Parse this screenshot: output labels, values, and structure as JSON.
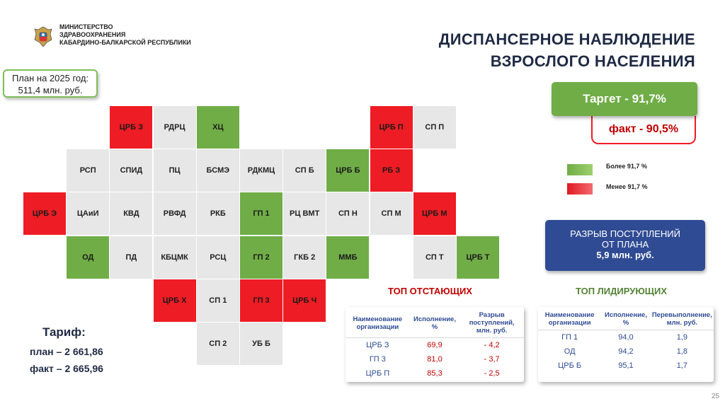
{
  "header": {
    "ministry_lines": [
      "МИНИСТЕРСТВО",
      "ЗДРАВООХРАНЕНИЯ",
      "КАБАРДИНО-БАЛКАРСКОЙ РЕСПУБЛИКИ"
    ],
    "title_line1": "ДИСПАНСЕРНОЕ НАБЛЮДЕНИЕ",
    "title_line2": "ВЗРОСЛОГО НАСЕЛЕНИЯ"
  },
  "plan": {
    "line1": "План на 2025 год:",
    "line2": "511,4 млн. руб."
  },
  "grid": {
    "cells": [
      {
        "label": "ЦРБ З",
        "status": "red",
        "col": 2,
        "row": 0
      },
      {
        "label": "РДРЦ",
        "status": "gray",
        "col": 3,
        "row": 0
      },
      {
        "label": "ХЦ",
        "status": "green",
        "col": 4,
        "row": 0
      },
      {
        "label": "ЦРБ П",
        "status": "red",
        "col": 8,
        "row": 0
      },
      {
        "label": "СП П",
        "status": "gray",
        "col": 9,
        "row": 0
      },
      {
        "label": "РСП",
        "status": "gray",
        "col": 1,
        "row": 1
      },
      {
        "label": "СПИД",
        "status": "gray",
        "col": 2,
        "row": 1
      },
      {
        "label": "ПЦ",
        "status": "gray",
        "col": 3,
        "row": 1
      },
      {
        "label": "БСМЭ",
        "status": "gray",
        "col": 4,
        "row": 1
      },
      {
        "label": "РДКМЦ",
        "status": "gray",
        "col": 5,
        "row": 1
      },
      {
        "label": "СП Б",
        "status": "gray",
        "col": 6,
        "row": 1
      },
      {
        "label": "ЦРБ Б",
        "status": "green",
        "col": 7,
        "row": 1
      },
      {
        "label": "РБ З",
        "status": "red",
        "col": 8,
        "row": 1
      },
      {
        "label": "ЦРБ Э",
        "status": "red",
        "col": 0,
        "row": 2
      },
      {
        "label": "ЦАиИ",
        "status": "gray",
        "col": 1,
        "row": 2
      },
      {
        "label": "КВД",
        "status": "gray",
        "col": 2,
        "row": 2
      },
      {
        "label": "РВФД",
        "status": "gray",
        "col": 3,
        "row": 2
      },
      {
        "label": "РКБ",
        "status": "gray",
        "col": 4,
        "row": 2
      },
      {
        "label": "ГП 1",
        "status": "green",
        "col": 5,
        "row": 2
      },
      {
        "label": "РЦ ВМТ",
        "status": "gray",
        "col": 6,
        "row": 2
      },
      {
        "label": "СП Н",
        "status": "gray",
        "col": 7,
        "row": 2
      },
      {
        "label": "СП М",
        "status": "gray",
        "col": 8,
        "row": 2
      },
      {
        "label": "ЦРБ М",
        "status": "red",
        "col": 9,
        "row": 2
      },
      {
        "label": "ОД",
        "status": "green",
        "col": 1,
        "row": 3
      },
      {
        "label": "ПД",
        "status": "gray",
        "col": 2,
        "row": 3
      },
      {
        "label": "КБЦМК",
        "status": "gray",
        "col": 3,
        "row": 3
      },
      {
        "label": "РСЦ",
        "status": "gray",
        "col": 4,
        "row": 3
      },
      {
        "label": "ГП 2",
        "status": "green",
        "col": 5,
        "row": 3
      },
      {
        "label": "ГКБ 2",
        "status": "gray",
        "col": 6,
        "row": 3
      },
      {
        "label": "ММБ",
        "status": "green",
        "col": 7,
        "row": 3
      },
      {
        "label": "СП Т",
        "status": "gray",
        "col": 9,
        "row": 3
      },
      {
        "label": "ЦРБ Т",
        "status": "green",
        "col": 10,
        "row": 3
      },
      {
        "label": "ЦРБ Х",
        "status": "red",
        "col": 3,
        "row": 4
      },
      {
        "label": "СП 1",
        "status": "gray",
        "col": 4,
        "row": 4
      },
      {
        "label": "ГП 3",
        "status": "red",
        "col": 5,
        "row": 4
      },
      {
        "label": "ЦРБ Ч",
        "status": "red",
        "col": 6,
        "row": 4
      },
      {
        "label": "СП 2",
        "status": "gray",
        "col": 4,
        "row": 5
      },
      {
        "label": "УБ Б",
        "status": "gray",
        "col": 5,
        "row": 5
      }
    ]
  },
  "target": {
    "text": "Таргет  - 91,7%"
  },
  "fact": {
    "text": "факт  - 90,5%"
  },
  "legend": {
    "above": "Более 91,7 %",
    "below": "Менее 91,7 %"
  },
  "gap": {
    "line1": "РАЗРЫВ ПОСТУПЛЕНИЙ",
    "line2": "ОТ ПЛАНА",
    "amount": "5,9 млн. руб."
  },
  "tariff": {
    "heading": "Тариф:",
    "plan": "план – 2 661,86",
    "fact": "факт – 2 665,96"
  },
  "lagging": {
    "title": "ТОП ОТСТАЮЩИХ",
    "headers": [
      "Наименование организации",
      "Исполнение, %",
      "Разрыв поступлений, млн. руб."
    ],
    "rows": [
      [
        "ЦРБ З",
        "69,9",
        "- 4,2"
      ],
      [
        "ГП 3",
        "81,0",
        "- 3,7"
      ],
      [
        "ЦРБ П",
        "85,3",
        "- 2,5"
      ]
    ]
  },
  "leading": {
    "title": "ТОП ЛИДИРУЮЩИХ",
    "headers": [
      "Наименование организации",
      "Исполнение, %",
      "Перевыполнение, млн. руб."
    ],
    "rows": [
      [
        "ГП 1",
        "94,0",
        "1,9"
      ],
      [
        "ОД",
        "94,2",
        "1,8"
      ],
      [
        "ЦРБ Б",
        "95,1",
        "1,7"
      ]
    ]
  },
  "colors": {
    "green": "#70ad47",
    "red": "#ee1c24",
    "gray": "#e7e7e7",
    "navy": "#2f4b93"
  },
  "icons": {
    "logo": "coat-of-arms-icon"
  },
  "page_number": "25"
}
